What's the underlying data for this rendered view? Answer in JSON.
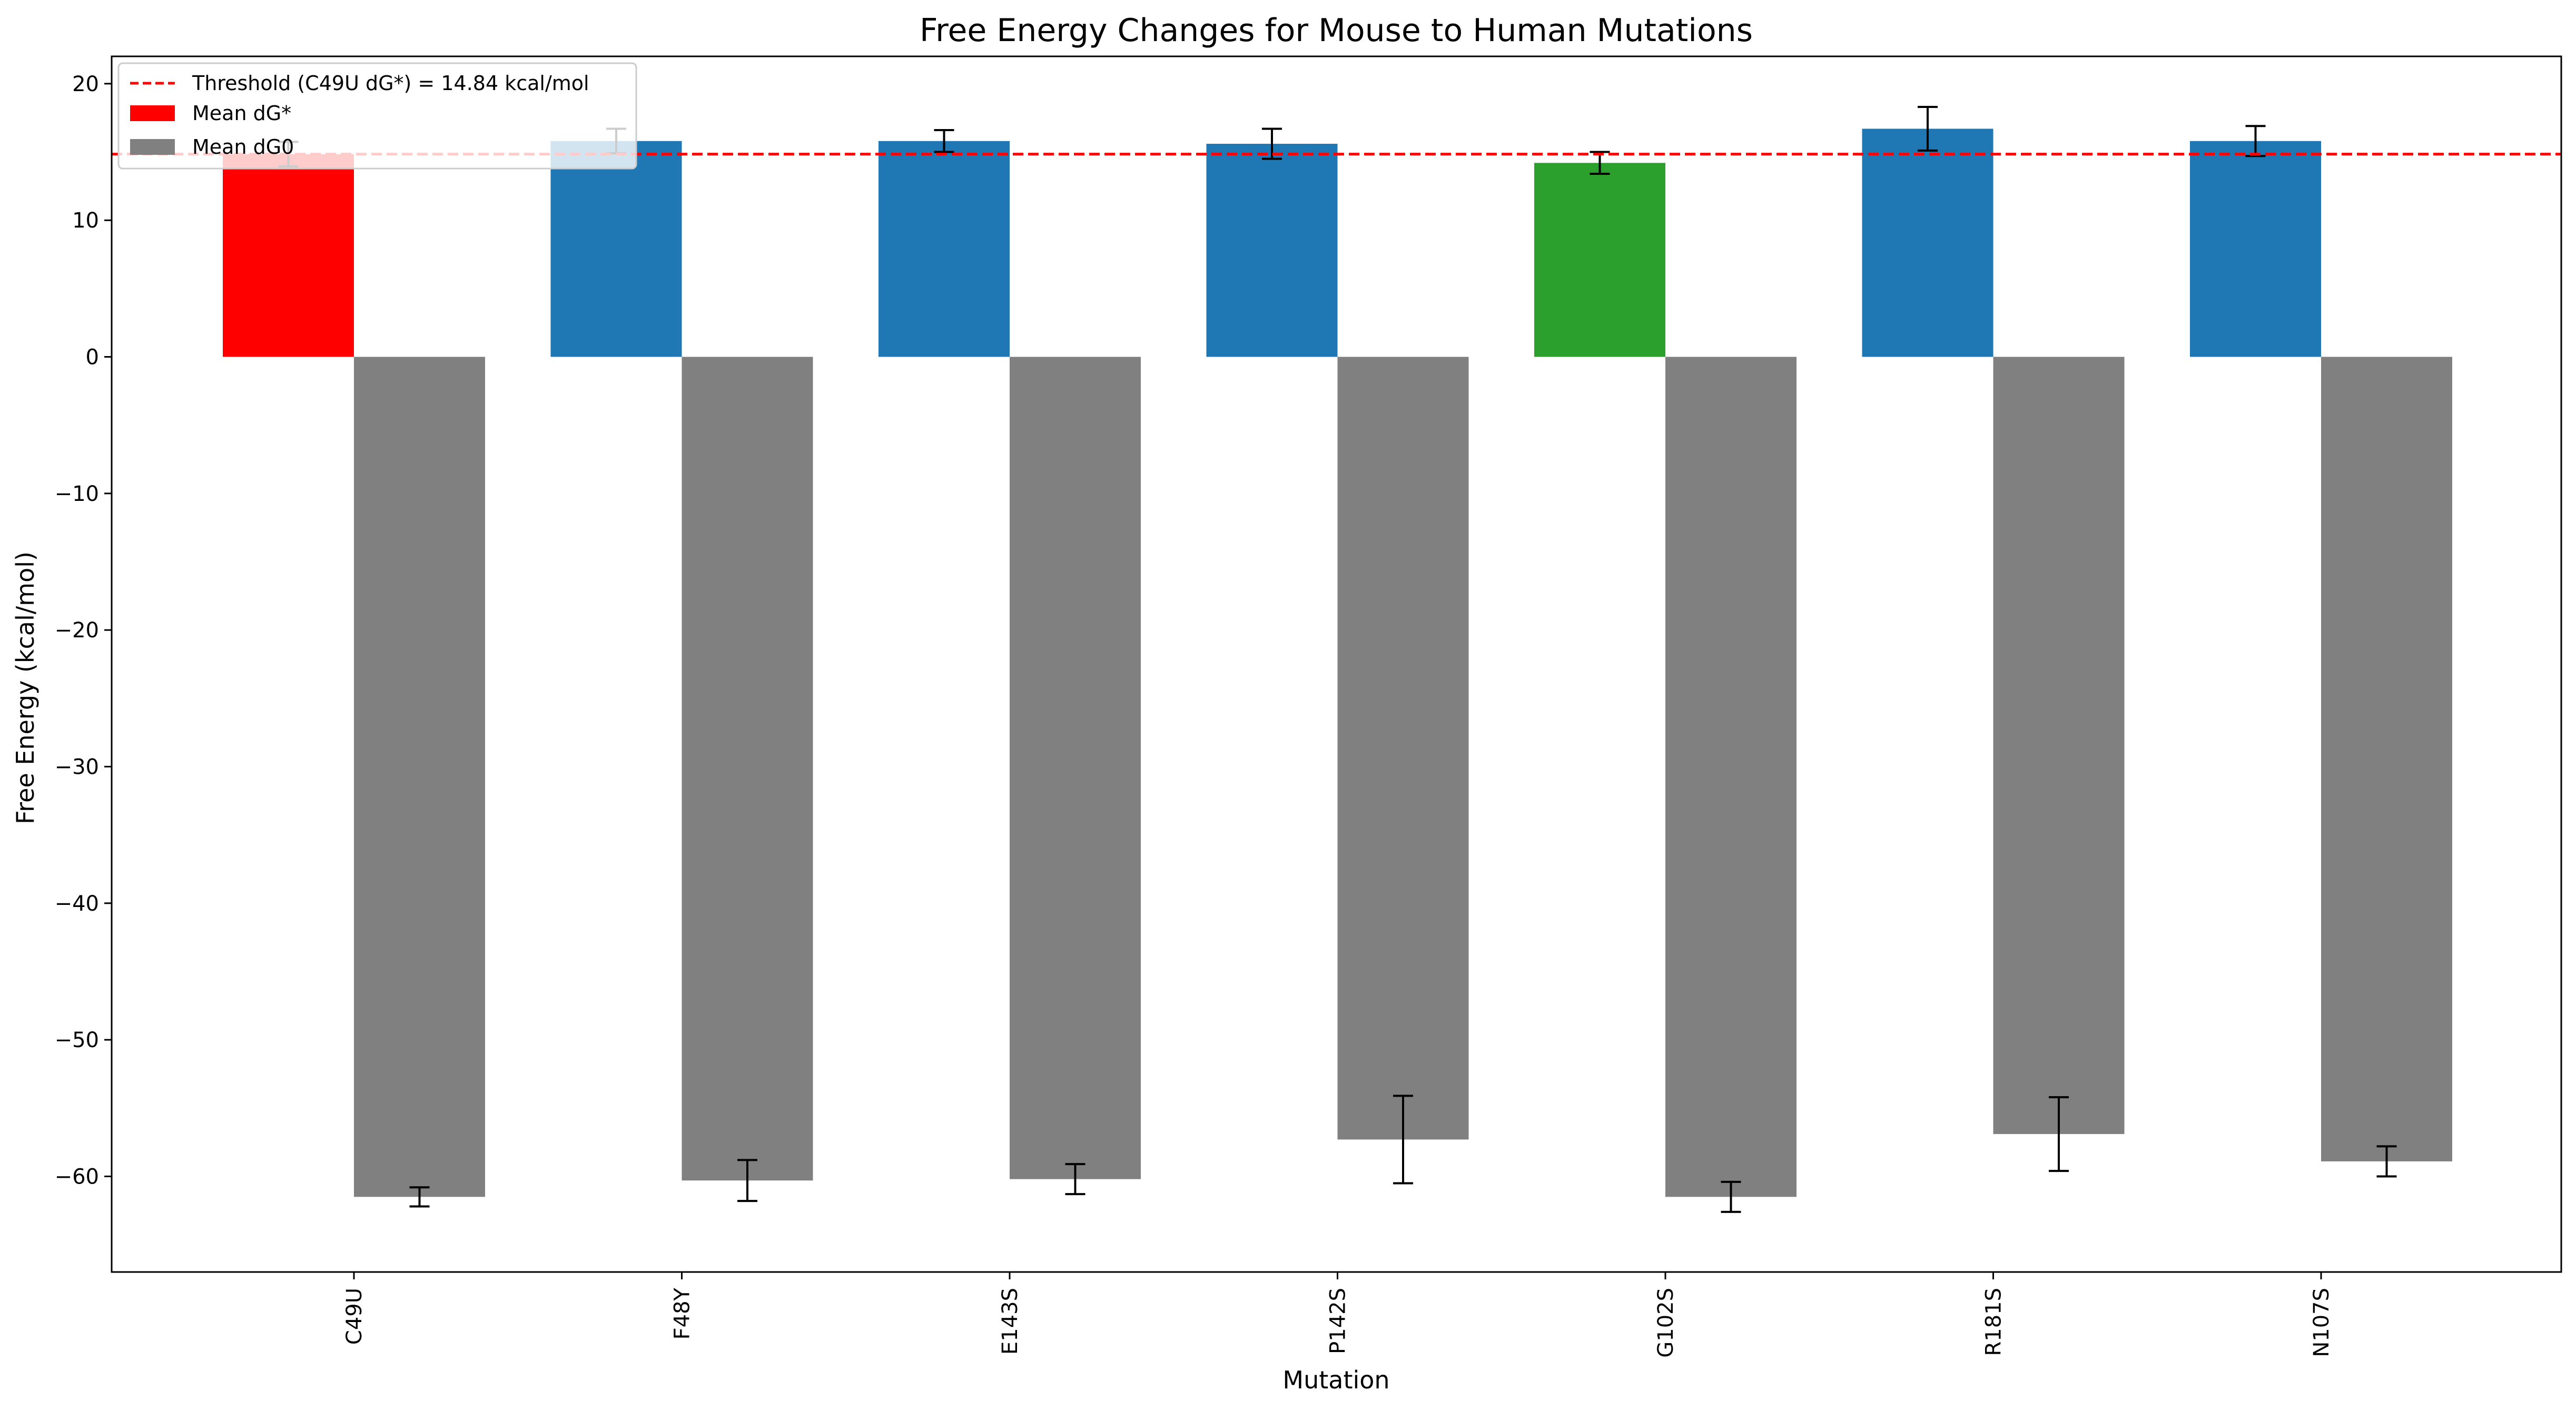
{
  "chart_data": {
    "type": "bar",
    "title": "Free Energy Changes for Mouse to Human Mutations",
    "xlabel": "Mutation",
    "ylabel": "Free Energy (kcal/mol)",
    "ylim": [
      -67,
      22
    ],
    "yticks": [
      20,
      10,
      0,
      -10,
      -20,
      -30,
      -40,
      -50,
      -60
    ],
    "ytick_labels": [
      "20",
      "10",
      "0",
      "−10",
      "−20",
      "−30",
      "−40",
      "−50",
      "−60"
    ],
    "categories": [
      "C49U",
      "F48Y",
      "E143S",
      "P142S",
      "G102S",
      "R181S",
      "N107S"
    ],
    "series": [
      {
        "name": "Mean dG*",
        "values": [
          14.84,
          15.8,
          15.8,
          15.6,
          14.2,
          16.7,
          15.8
        ],
        "errors": [
          0.9,
          0.9,
          0.8,
          1.1,
          0.8,
          1.6,
          1.1
        ],
        "colors": [
          "#ff0000",
          "#1f77b4",
          "#1f77b4",
          "#1f77b4",
          "#2ca02c",
          "#1f77b4",
          "#1f77b4"
        ],
        "legend_color": "#ff0000"
      },
      {
        "name": "Mean dG0",
        "values": [
          -61.5,
          -60.3,
          -60.2,
          -57.3,
          -61.5,
          -56.9,
          -58.9
        ],
        "errors": [
          0.7,
          1.5,
          1.1,
          3.2,
          1.1,
          2.7,
          1.1
        ],
        "color": "#808080"
      }
    ],
    "threshold": {
      "label": "Threshold (C49U dG*) = 14.84 kcal/mol",
      "value": 14.84,
      "color": "#ff0000",
      "style": "dashed"
    },
    "legend": {
      "position": "top-left"
    },
    "grid": false
  }
}
